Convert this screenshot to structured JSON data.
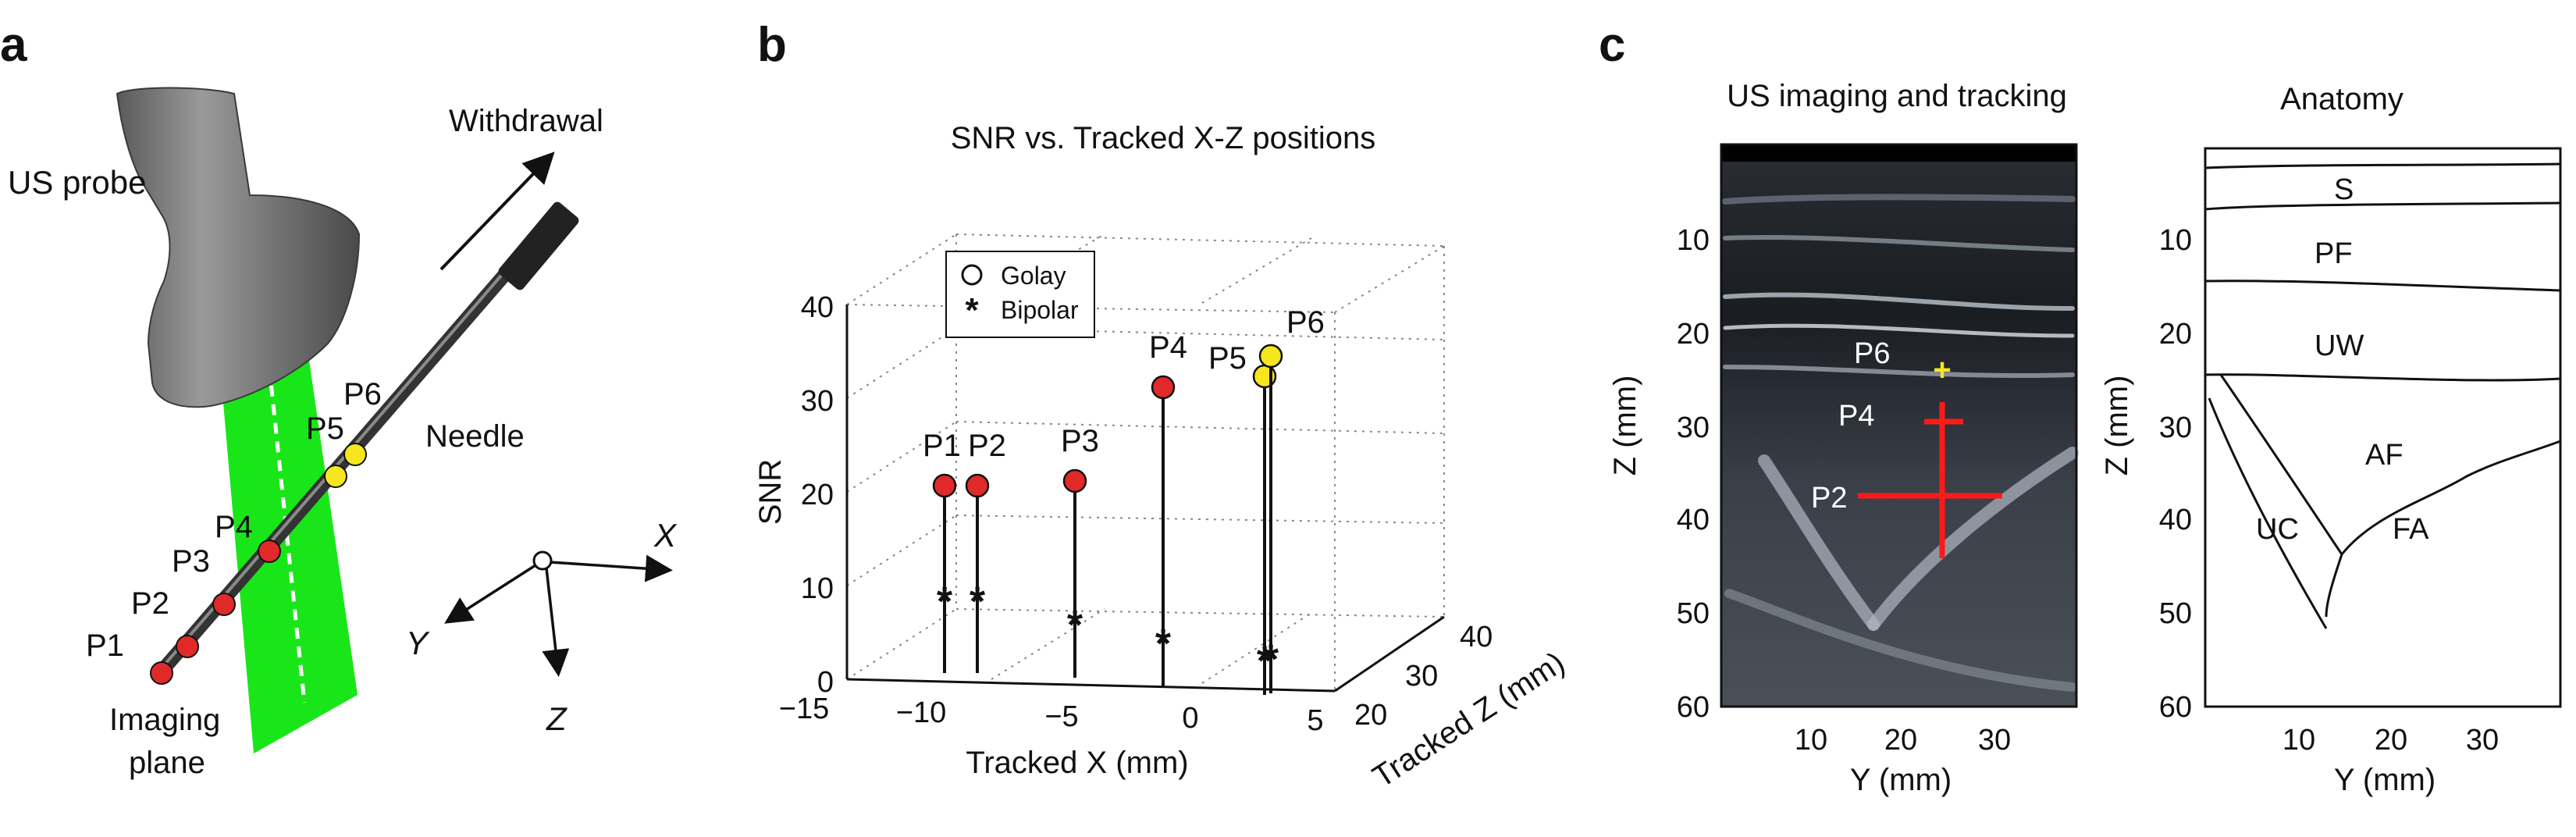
{
  "colors": {
    "green": "#19e619",
    "red_marker": "#e02a2a",
    "yellow_marker": "#f5e61e",
    "us_bg": "#15171c",
    "crosshair": "#ff1a1a"
  },
  "panel_a": {
    "letter": "a",
    "us_probe_label": "US probe",
    "withdrawal_label": "Withdrawal",
    "needle_label": "Needle",
    "imaging_plane_label_1": "Imaging",
    "imaging_plane_label_2": "plane",
    "points": [
      "P1",
      "P2",
      "P3",
      "P4",
      "P5",
      "P6"
    ],
    "axes": {
      "x": "X",
      "y": "Y",
      "z": "Z"
    }
  },
  "panel_b": {
    "letter": "b",
    "chart_data": {
      "type": "scatter",
      "title": "SNR vs. Tracked X-Z positions",
      "xlabel": "Tracked X (mm)",
      "zlabel": "Tracked Z (mm)",
      "ylabel": "SNR",
      "x_ticks": [
        "−15",
        "−10",
        "−5",
        "0",
        "5"
      ],
      "z_ticks": [
        "20",
        "30",
        "40"
      ],
      "y_ticks": [
        "0",
        "10",
        "20",
        "30",
        "40"
      ],
      "xlim": [
        -15,
        5
      ],
      "zlim": [
        20,
        40
      ],
      "ylim": [
        0,
        40
      ],
      "legend": {
        "golay": "Golay",
        "bipolar": "Bipolar"
      },
      "series": [
        {
          "name": "Golay",
          "points": [
            {
              "label": "P1",
              "snr": 20
            },
            {
              "label": "P2",
              "snr": 20
            },
            {
              "label": "P3",
              "snr": 21
            },
            {
              "label": "P4",
              "snr": 32
            },
            {
              "label": "P5",
              "snr": 34
            },
            {
              "label": "P6",
              "snr": 36
            }
          ]
        },
        {
          "name": "Bipolar",
          "points": [
            {
              "label": "P1",
              "snr": 8
            },
            {
              "label": "P2",
              "snr": 8
            },
            {
              "label": "P3",
              "snr": 6
            },
            {
              "label": "P4",
              "snr": 5
            },
            {
              "label": "P5",
              "snr": 4
            },
            {
              "label": "P6",
              "snr": 4
            }
          ]
        }
      ]
    }
  },
  "panel_c": {
    "letter": "c",
    "us_title": "US imaging and tracking",
    "anatomy_title": "Anatomy",
    "ylabel": "Z (mm)",
    "xlabel": "Y (mm)",
    "z_ticks": [
      "10",
      "20",
      "30",
      "40",
      "50",
      "60"
    ],
    "y_ticks": [
      "10",
      "20",
      "30"
    ],
    "us_labels": [
      "P6",
      "P4",
      "P2"
    ],
    "anatomy_labels": [
      "S",
      "PF",
      "UW",
      "AF",
      "UC",
      "FA"
    ]
  }
}
